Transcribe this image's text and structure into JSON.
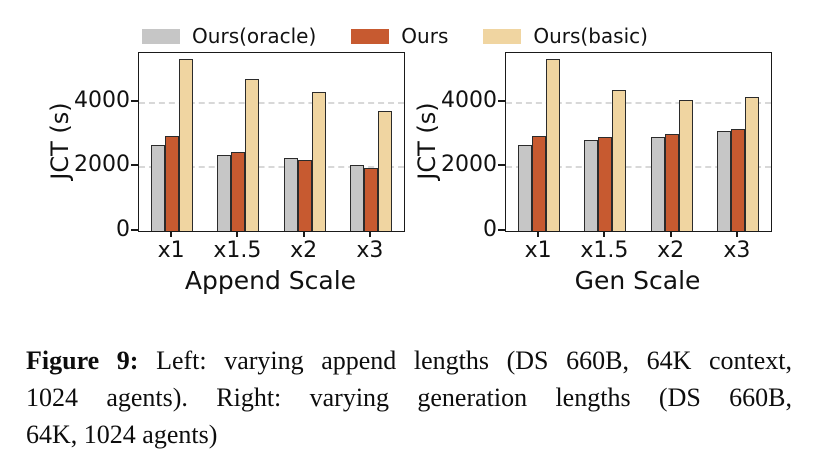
{
  "legend": {
    "items": [
      {
        "label": "Ours(oracle)",
        "color": "#c6c6c6"
      },
      {
        "label": "Ours",
        "color": "#c75a30"
      },
      {
        "label": "Ours(basic)",
        "color": "#f0d5a1"
      }
    ],
    "position": "top-center-shared"
  },
  "chart_data": [
    {
      "id": "append-scale",
      "type": "bar",
      "title": "",
      "xlabel": "Append Scale",
      "ylabel": "JCT (s)",
      "categories": [
        "x1",
        "x1.5",
        "x2",
        "x3"
      ],
      "series": [
        {
          "name": "Ours(oracle)",
          "color": "#c6c6c6",
          "values": [
            2650,
            2350,
            2250,
            2050
          ]
        },
        {
          "name": "Ours",
          "color": "#c75a30",
          "values": [
            2950,
            2450,
            2200,
            1950
          ]
        },
        {
          "name": "Ours(basic)",
          "color": "#f0d5a1",
          "values": [
            5300,
            4700,
            4300,
            3700
          ]
        }
      ],
      "ylim": [
        0,
        5500
      ],
      "yticks": [
        0,
        2000,
        4000
      ],
      "grid": {
        "horizontal": true,
        "style": "dashed",
        "color": "#d8d8d8"
      },
      "legend_position": "above-figure"
    },
    {
      "id": "gen-scale",
      "type": "bar",
      "title": "",
      "xlabel": "Gen Scale",
      "ylabel": "JCT (s)",
      "categories": [
        "x1",
        "x1.5",
        "x2",
        "x3"
      ],
      "series": [
        {
          "name": "Ours(oracle)",
          "color": "#c6c6c6",
          "values": [
            2650,
            2800,
            2900,
            3100
          ]
        },
        {
          "name": "Ours",
          "color": "#c75a30",
          "values": [
            2950,
            2900,
            3000,
            3150
          ]
        },
        {
          "name": "Ours(basic)",
          "color": "#f0d5a1",
          "values": [
            5300,
            4350,
            4050,
            4150
          ]
        }
      ],
      "ylim": [
        0,
        5500
      ],
      "yticks": [
        0,
        2000,
        4000
      ],
      "grid": {
        "horizontal": true,
        "style": "dashed",
        "color": "#d8d8d8"
      },
      "legend_position": "above-figure"
    }
  ],
  "caption": {
    "label": "Figure 9:",
    "lines": [
      "Left: varying append lengths (DS 660B, 64K context,",
      "1024 agents). Right: varying generation lengths (DS 660B,",
      "64K, 1024 agents)"
    ],
    "full_text": "Figure 9: Left: varying append lengths (DS 660B, 64K context, 1024 agents). Right: varying generation lengths (DS 660B, 64K, 1024 agents)"
  },
  "colors": {
    "background": "#ffffff",
    "axis": "#1a1a1a",
    "bar_edge": "#2b2b2b",
    "grid": "#d8d8d8",
    "text": "#111111"
  }
}
